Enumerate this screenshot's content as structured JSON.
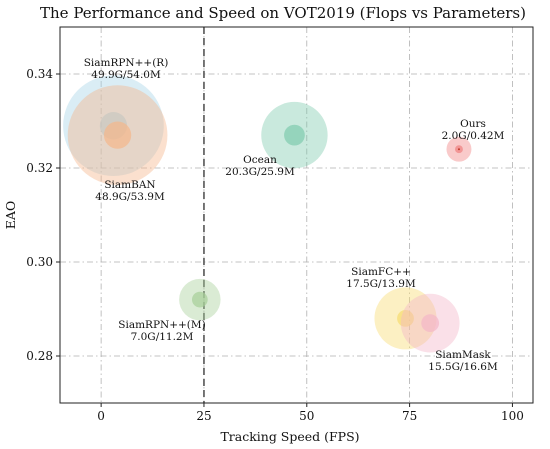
{
  "chart_data": {
    "type": "scatter",
    "title": "The Performance and Speed on VOT2019 (Flops vs Parameters)",
    "xlabel": "Tracking Speed (FPS)",
    "ylabel": "EAO",
    "xlim": [
      -10,
      105
    ],
    "ylim": [
      0.27,
      0.35
    ],
    "xticks": [
      0,
      25,
      50,
      75,
      100
    ],
    "yticks": [
      0.28,
      0.3,
      0.32,
      0.34
    ],
    "ytick_labels": [
      "0.28",
      "0.30",
      "0.32",
      "0.34"
    ],
    "grid": true,
    "vline": {
      "x": 25,
      "style": "dashed",
      "color": "#555555"
    },
    "points": [
      {
        "name": "SiamRPN++(R)",
        "label_line2": "49.9G/54.0M",
        "x": 3,
        "y": 0.329,
        "flops": 49.9,
        "params": 54.0,
        "color": "#a8d4e8"
      },
      {
        "name": "SiamBAN",
        "label_line2": "48.9G/53.9M",
        "x": 4,
        "y": 0.327,
        "flops": 48.9,
        "params": 53.9,
        "color": "#f5b68a"
      },
      {
        "name": "Ocean",
        "label_line2": "20.3G/25.9M",
        "x": 47,
        "y": 0.327,
        "flops": 20.3,
        "params": 25.9,
        "color": "#7fcbae"
      },
      {
        "name": "Ours",
        "label_line2": "2.0G/0.42M",
        "x": 87,
        "y": 0.324,
        "flops": 2.0,
        "params": 0.42,
        "color": "#f08080"
      },
      {
        "name": "SiamRPN++(M)",
        "label_line2": "7.0G/11.2M",
        "x": 24,
        "y": 0.292,
        "flops": 7.0,
        "params": 11.2,
        "color": "#a6cf98"
      },
      {
        "name": "SiamFC++",
        "label_line2": "17.5G/13.9M",
        "x": 74,
        "y": 0.288,
        "flops": 17.5,
        "params": 13.9,
        "color": "#f7dc6f"
      },
      {
        "name": "SiamMask",
        "label_line2": "15.5G/16.6M",
        "x": 80,
        "y": 0.287,
        "flops": 15.5,
        "params": 16.6,
        "color": "#f4b6c8"
      }
    ]
  }
}
